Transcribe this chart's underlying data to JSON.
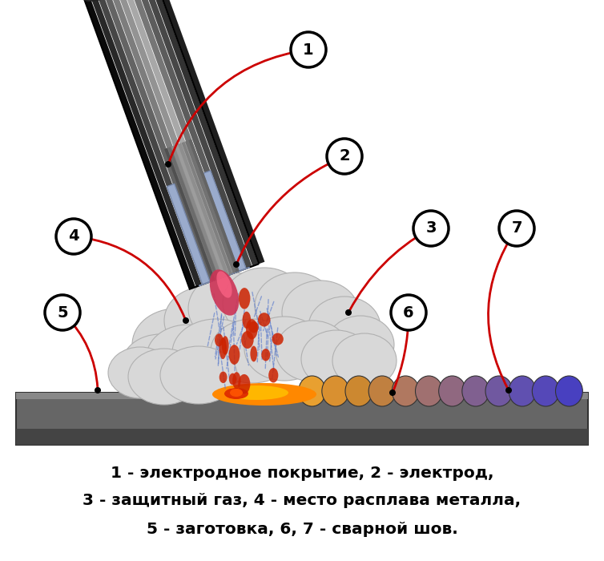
{
  "bg_color": "#ffffff",
  "caption_line1": "1 - электродное покрытие, 2 - электрод,",
  "caption_line2": "3 - защитный газ, 4 - место расплава металла,",
  "caption_line3": "5 - заготовка, 6, 7 - сварной шов.",
  "arrow_color": "#cc0000",
  "label_bg": "#ffffff",
  "label_edge": "#000000",
  "text_color": "#000000",
  "plate_color": "#555555",
  "plate_highlight": "#777777",
  "smoke_fill": "#d8d8d8",
  "smoke_edge": "#b0b0b0",
  "weld_scallops": [
    "#e8a030",
    "#d99030",
    "#cc8830",
    "#c08040",
    "#b07860",
    "#a07070",
    "#906880",
    "#806090",
    "#7058a0",
    "#6050b0",
    "#5548b8",
    "#4840c0"
  ],
  "pool_orange": "#ff8800",
  "pool_yellow": "#ffcc00",
  "pool_red": "#dd2200",
  "arc_blue": "#5577cc",
  "drop_red": "#cc2200",
  "shield_color": "#9aabcc",
  "shield_inner": "#b8c8e8",
  "core_gray": "#888899",
  "core_red": "#cc3355",
  "electrode_dark": "#1a1a1a",
  "electrode_light": "#aaaaaa",
  "electrode_cap_red": "#cc3333",
  "electrode_cap_blue": "#7788bb"
}
